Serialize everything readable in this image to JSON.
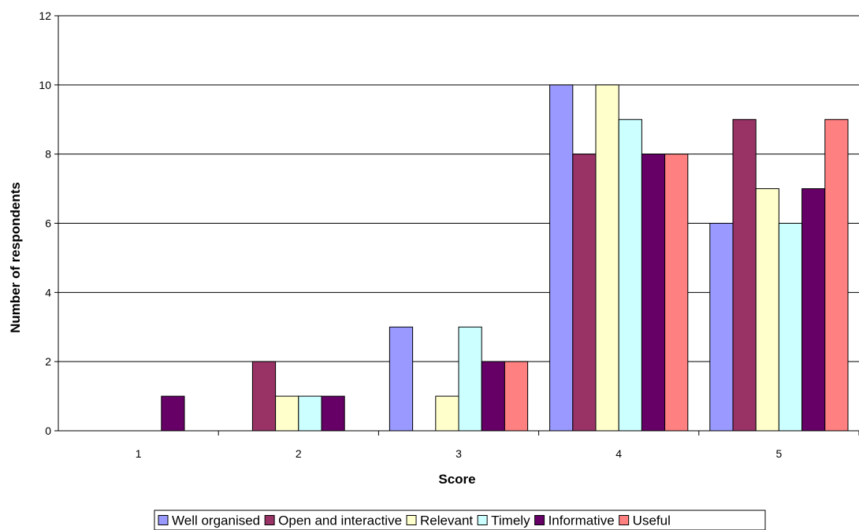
{
  "chart_data": {
    "type": "bar",
    "xlabel": "Score",
    "ylabel": "Number of respondents",
    "categories": [
      "1",
      "2",
      "3",
      "4",
      "5"
    ],
    "ylim": [
      0,
      12
    ],
    "yticks": [
      0,
      2,
      4,
      6,
      8,
      10,
      12
    ],
    "grid": true,
    "legend_position": "bottom",
    "series": [
      {
        "name": "Well organised",
        "color": "#9999ff",
        "values": [
          0,
          0,
          3,
          10,
          6
        ]
      },
      {
        "name": "Open and interactive",
        "color": "#993366",
        "values": [
          0,
          2,
          0,
          8,
          9
        ]
      },
      {
        "name": "Relevant",
        "color": "#ffffcc",
        "values": [
          0,
          1,
          1,
          10,
          7
        ]
      },
      {
        "name": "Timely",
        "color": "#ccffff",
        "values": [
          0,
          1,
          3,
          9,
          6
        ]
      },
      {
        "name": "Informative",
        "color": "#660066",
        "values": [
          1,
          1,
          2,
          8,
          7
        ]
      },
      {
        "name": "Useful",
        "color": "#ff8080",
        "values": [
          0,
          0,
          2,
          8,
          9
        ]
      }
    ]
  }
}
